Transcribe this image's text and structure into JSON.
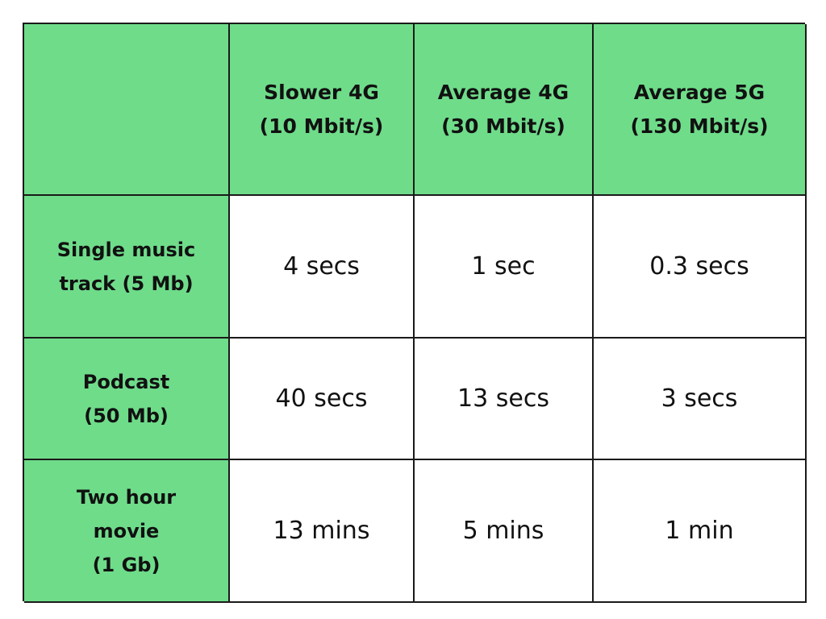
{
  "table": {
    "corner": "",
    "columns": [
      "Slower 4G\n(10 Mbit/s)",
      "Average 4G\n(30 Mbit/s)",
      "Average 5G\n(130 Mbit/s)"
    ],
    "rows": [
      {
        "label": "Single music\ntrack (5 Mb)",
        "values": [
          "4 secs",
          "1 sec",
          "0.3 secs"
        ]
      },
      {
        "label": "Podcast\n(50 Mb)",
        "values": [
          "40 secs",
          "13 secs",
          "3 secs"
        ]
      },
      {
        "label": "Two hour\nmovie\n(1 Gb)",
        "values": [
          "13 mins",
          "5 mins",
          "1 min"
        ]
      }
    ],
    "colors": {
      "header_bg": "#6fdc8a",
      "cell_bg": "#ffffff",
      "border": "#1a1a1a",
      "text": "#111111"
    }
  }
}
